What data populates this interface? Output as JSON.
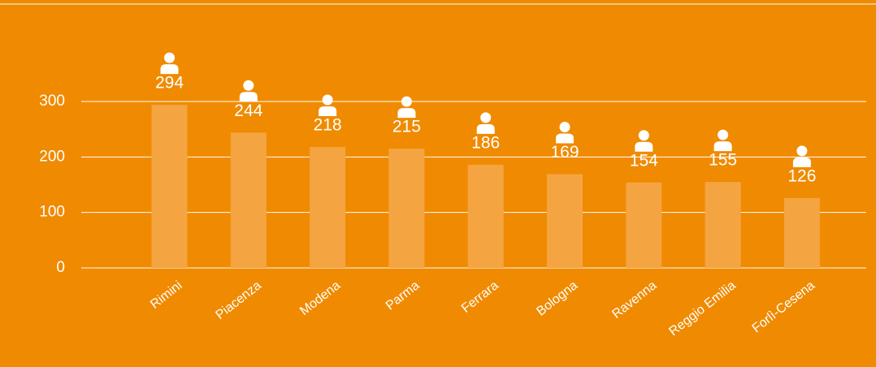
{
  "chart_data": {
    "type": "bar",
    "categories": [
      "Rimini",
      "Piacenza",
      "Modena",
      "Parma",
      "Ferrara",
      "Bologna",
      "Ravenna",
      "Reggio Emilia",
      "Forlì-Cesena"
    ],
    "values": [
      294,
      244,
      218,
      215,
      186,
      169,
      154,
      155,
      126
    ],
    "color": "#f5a442",
    "ylim": [
      0,
      300
    ],
    "yticks": [
      0,
      100,
      200,
      300
    ],
    "grid": true
  }
}
